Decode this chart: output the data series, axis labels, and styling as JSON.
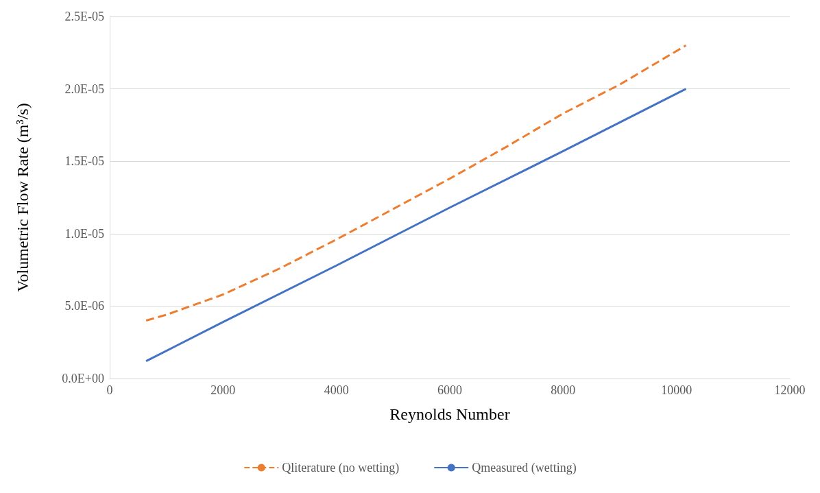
{
  "chart_data": {
    "type": "line",
    "xlabel": "Reynolds Number",
    "ylabel": "Volumetric Flow Rate (m³/s)",
    "xlim": [
      0,
      12000
    ],
    "xticks": [
      0,
      2000,
      4000,
      6000,
      8000,
      10000,
      12000
    ],
    "ylim": [
      0,
      2.5e-05
    ],
    "yticks": [
      {
        "value": 0,
        "label": "0.0E+00"
      },
      {
        "value": 5e-06,
        "label": "5.0E-06"
      },
      {
        "value": 1e-05,
        "label": "1.0E-05"
      },
      {
        "value": 1.5e-05,
        "label": "1.5E-05"
      },
      {
        "value": 2e-05,
        "label": "2.0E-05"
      },
      {
        "value": 2.5e-05,
        "label": "2.5E-05"
      }
    ],
    "grid": "y",
    "legend": "bottom",
    "marker": "none",
    "series": [
      {
        "name": "Qliterature (no wetting)",
        "color": "#ed7d31",
        "line_style": "dashed",
        "x": [
          643,
          1000,
          2000,
          3000,
          4000,
          5000,
          6000,
          7000,
          8000,
          9000,
          10167
        ],
        "values": [
          4e-06,
          4.4e-06,
          5.8e-06,
          7.6e-06,
          9.6e-06,
          1.17e-05,
          1.38e-05,
          1.6e-05,
          1.83e-05,
          2.03e-05,
          2.3e-05
        ]
      },
      {
        "name": "Qmeasured (wetting)",
        "color": "#4472c4",
        "line_style": "solid",
        "x": [
          643,
          2000,
          4000,
          6000,
          8000,
          10167
        ],
        "values": [
          1.2e-06,
          3.9e-06,
          7.8e-06,
          1.18e-05,
          1.57e-05,
          2e-05
        ]
      }
    ]
  }
}
